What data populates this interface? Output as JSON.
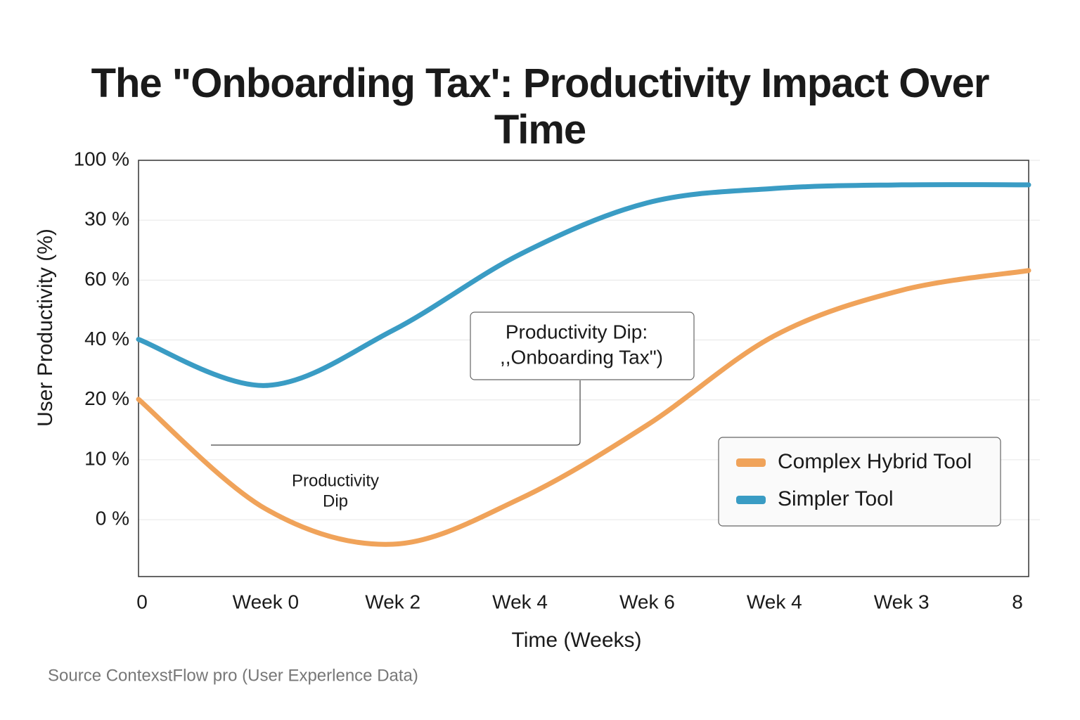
{
  "chart_data": {
    "type": "line",
    "title": "The \"Onboarding Tax': Productivity Impact Over Time",
    "x_label": "Time (Weeks)",
    "y_label": "User Productivity (%)",
    "categories": [
      "0",
      "Week 0",
      "Wek 2",
      "Wek 4",
      "Wek 6",
      "Wek 4",
      "Wek 3",
      "8"
    ],
    "y_levels": [
      "0 %",
      "10 %",
      "20 %",
      "40 %",
      "60 %",
      "30 %",
      "100 %"
    ],
    "ylim": [
      -0.95,
      6
    ],
    "grid": true,
    "legend": "right",
    "series": [
      {
        "name": "Complex Hybrid Tool",
        "color": "#f0a35a",
        "values": [
          2.01,
          0.18,
          -0.41,
          0.35,
          1.58,
          3.07,
          3.83,
          4.16
        ]
      },
      {
        "name": "Simpler Tool",
        "color": "#3a9cc4",
        "values": [
          3.01,
          2.24,
          3.16,
          4.43,
          5.29,
          5.53,
          5.59,
          5.59
        ]
      }
    ],
    "callout": [
      "Productivity Dip:",
      ",,Onboarding Tax\")"
    ],
    "dip_label": [
      "Productivity",
      "Dip"
    ],
    "source": "Source  ContexstFlow pro (User Experlence Data)"
  }
}
